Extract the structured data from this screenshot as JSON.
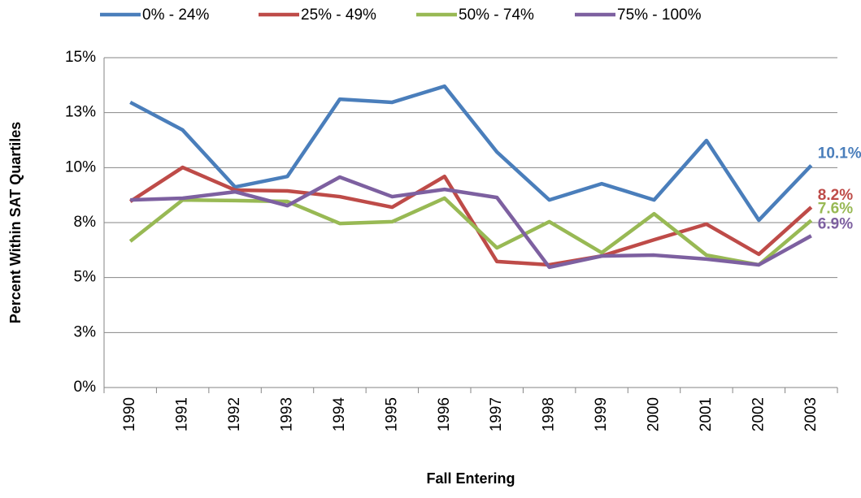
{
  "chart_data": {
    "type": "line",
    "x_label": "Fall Entering",
    "y_label": "Percent Within SAT Quartiles",
    "categories": [
      "1990",
      "1991",
      "1992",
      "1993",
      "1994",
      "1995",
      "1996",
      "1997",
      "1998",
      "1999",
      "2000",
      "2001",
      "2002",
      "2003"
    ],
    "series": [
      {
        "name": "0% - 24%",
        "color": "#4a7ebb",
        "values": [
          12.97,
          11.71,
          9.12,
          9.6,
          13.11,
          12.97,
          13.7,
          10.71,
          8.53,
          9.27,
          8.53,
          11.23,
          7.61,
          10.1
        ],
        "value_labels": [
          null,
          null,
          null,
          null,
          null,
          null,
          null,
          null,
          null,
          null,
          null,
          null,
          null,
          "10.1%"
        ]
      },
      {
        "name": "25% - 49%",
        "color": "#be4b48",
        "values": [
          8.46,
          10.01,
          8.98,
          8.94,
          8.68,
          8.2,
          9.6,
          5.73,
          5.58,
          5.98,
          6.72,
          7.43,
          6.06,
          8.2
        ],
        "value_labels": [
          null,
          null,
          null,
          null,
          null,
          null,
          null,
          null,
          null,
          null,
          null,
          null,
          null,
          "8.2%"
        ]
      },
      {
        "name": "50% - 74%",
        "color": "#98b954",
        "values": [
          6.65,
          8.53,
          8.5,
          8.46,
          7.46,
          7.54,
          8.61,
          6.35,
          7.54,
          6.13,
          7.9,
          6.02,
          5.58,
          7.6
        ],
        "value_labels": [
          null,
          null,
          null,
          null,
          null,
          null,
          null,
          null,
          null,
          null,
          null,
          null,
          null,
          "7.6%"
        ]
      },
      {
        "name": "75% - 100%",
        "color": "#7d60a0",
        "values": [
          8.53,
          8.61,
          8.9,
          8.27,
          9.57,
          8.68,
          9.01,
          8.64,
          5.47,
          5.98,
          6.02,
          5.84,
          5.58,
          6.9
        ],
        "value_labels": [
          null,
          null,
          null,
          null,
          null,
          null,
          null,
          null,
          null,
          null,
          null,
          null,
          null,
          "6.9%"
        ]
      }
    ],
    "ylim": [
      0,
      15
    ],
    "yticks": [
      {
        "value": 0,
        "label": "0%"
      },
      {
        "value": 2.5,
        "label": "3%"
      },
      {
        "value": 5,
        "label": "5%"
      },
      {
        "value": 7.5,
        "label": "8%"
      },
      {
        "value": 10,
        "label": "10%"
      },
      {
        "value": 12.5,
        "label": "13%"
      },
      {
        "value": 15,
        "label": "15%"
      }
    ],
    "grid": true,
    "legend": "top"
  }
}
